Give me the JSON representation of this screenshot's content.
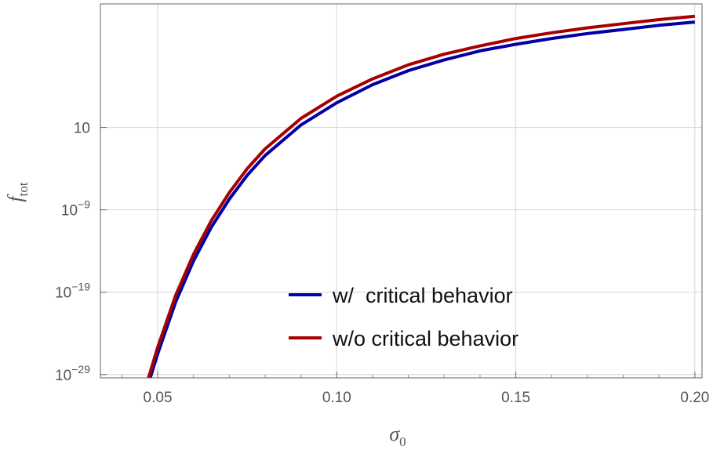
{
  "chart_data": {
    "type": "line",
    "xlabel": "σ",
    "xlabel_sub": "0",
    "ylabel": "f",
    "ylabel_sub": "tot",
    "xlim": [
      0.034,
      0.202
    ],
    "ylim_log10": [
      -29.4,
      16.0
    ],
    "y_scale": "log",
    "grid": true,
    "legend_position": "bottom-center",
    "x_ticks": [
      {
        "value": 0.05,
        "label": "0.05"
      },
      {
        "value": 0.1,
        "label": "0.10"
      },
      {
        "value": 0.15,
        "label": "0.15"
      },
      {
        "value": 0.2,
        "label": "0.20"
      }
    ],
    "y_ticks": [
      {
        "exp": 1,
        "base": "10",
        "sup": ""
      },
      {
        "exp": -9,
        "base": "10",
        "sup": "−9"
      },
      {
        "exp": -19,
        "base": "10",
        "sup": "−19"
      },
      {
        "exp": -29,
        "base": "10",
        "sup": "−29"
      }
    ],
    "series": [
      {
        "name": "w/  critical behavior",
        "color": "#0000a8",
        "x": [
          0.0475,
          0.05,
          0.055,
          0.06,
          0.065,
          0.07,
          0.075,
          0.08,
          0.09,
          0.1,
          0.11,
          0.12,
          0.13,
          0.14,
          0.15,
          0.16,
          0.17,
          0.18,
          0.19,
          0.2
        ],
        "log10_y": [
          -30.0,
          -26.5,
          -20.2,
          -15.2,
          -11.1,
          -7.7,
          -4.8,
          -2.4,
          1.3,
          4.0,
          6.2,
          7.9,
          9.2,
          10.3,
          11.1,
          11.8,
          12.4,
          12.9,
          13.4,
          13.8
        ]
      },
      {
        "name": "w/o critical behavior",
        "color": "#a80000",
        "x": [
          0.047,
          0.05,
          0.055,
          0.06,
          0.065,
          0.07,
          0.075,
          0.08,
          0.09,
          0.1,
          0.11,
          0.12,
          0.13,
          0.14,
          0.15,
          0.16,
          0.17,
          0.18,
          0.19,
          0.2
        ],
        "log10_y": [
          -30.0,
          -25.7,
          -19.4,
          -14.4,
          -10.3,
          -6.9,
          -4.0,
          -1.6,
          2.1,
          4.8,
          6.9,
          8.6,
          9.9,
          10.9,
          11.8,
          12.5,
          13.1,
          13.6,
          14.1,
          14.5
        ]
      }
    ]
  }
}
